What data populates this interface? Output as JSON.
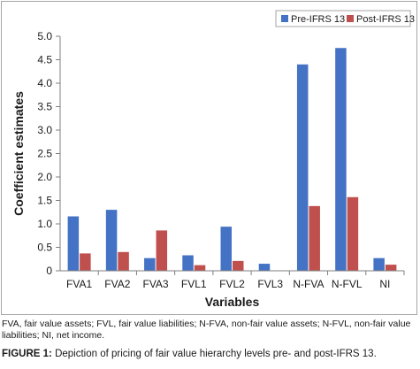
{
  "chart_data": {
    "type": "bar",
    "title": "",
    "xlabel": "Variables",
    "ylabel": "Coefficient estimates",
    "ylim": [
      0,
      5.0
    ],
    "yticks": [
      "0",
      "0.5",
      "1.0",
      "1.5",
      "2.0",
      "2.5",
      "3.0",
      "3.5",
      "4.0",
      "4.5",
      "5.0"
    ],
    "grid": false,
    "legend_position": "top-right",
    "categories": [
      "FVA1",
      "FVA2",
      "FVA3",
      "FVL1",
      "FVL2",
      "FVL3",
      "N-FVA",
      "N-FVL",
      "NI"
    ],
    "series": [
      {
        "name": "Pre-IFRS 13",
        "color": "#4472c4",
        "values": [
          1.16,
          1.3,
          0.27,
          0.33,
          0.94,
          0.15,
          4.4,
          4.75,
          0.27
        ]
      },
      {
        "name": "Post-IFRS 13",
        "color": "#c0504d",
        "values": [
          0.37,
          0.4,
          0.86,
          0.12,
          0.21,
          0.0,
          1.38,
          1.57,
          0.13
        ]
      }
    ]
  },
  "footnote": "FVA, fair value assets; FVL, fair value liabilities; N-FVA, non-fair value assets; N-FVL, non-fair value liabilities; NI, net income.",
  "caption": {
    "label": "FIGURE 1:",
    "text": " Depiction of pricing of fair value hierarchy levels pre- and post-IFRS 13."
  }
}
